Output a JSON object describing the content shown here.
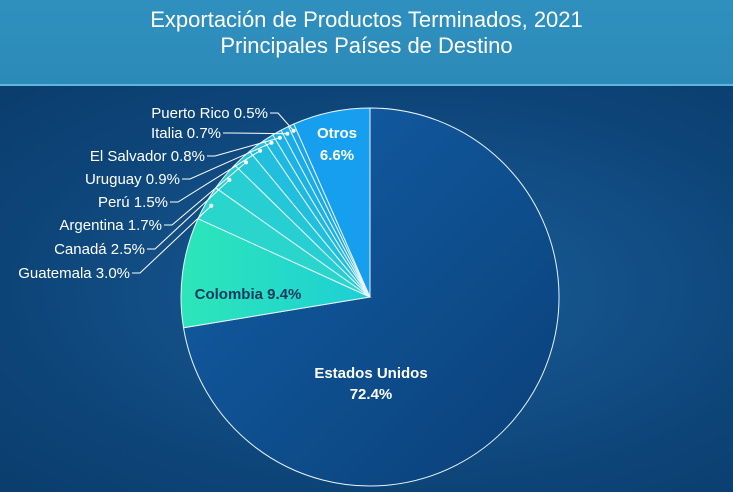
{
  "title_line1": "Exportación de Productos Terminados, 2021",
  "title_line2": "Principales Países de Destino",
  "chart_data": {
    "type": "pie",
    "title": "Exportación de Productos Terminados, 2021 Principales Países de Destino",
    "start": "12 o'clock",
    "direction": "clockwise",
    "slices": [
      {
        "name": "Estados Unidos",
        "value": 72.4,
        "label": "Estados Unidos",
        "pct": "72.4%",
        "color": "#0d4a88"
      },
      {
        "name": "Colombia",
        "value": 9.4,
        "label": "Colombia",
        "pct": "9.4%",
        "color": "#23dcc8"
      },
      {
        "name": "Guatemala",
        "value": 3.0,
        "label": "Guatemala",
        "pct": "3.0%",
        "color": "#2ad6cc"
      },
      {
        "name": "Canadá",
        "value": 2.5,
        "label": "Canadá",
        "pct": "2.5%",
        "color": "#27cfd2"
      },
      {
        "name": "Argentina",
        "value": 1.7,
        "label": "Argentina",
        "pct": "1.7%",
        "color": "#24c7d8"
      },
      {
        "name": "Perú",
        "value": 1.5,
        "label": "Perú",
        "pct": "1.5%",
        "color": "#21bfdd"
      },
      {
        "name": "Uruguay",
        "value": 0.9,
        "label": "Uruguay",
        "pct": "0.9%",
        "color": "#1fb8e1"
      },
      {
        "name": "El Salvador",
        "value": 0.8,
        "label": "El Salvador",
        "pct": "0.8%",
        "color": "#1db2e5"
      },
      {
        "name": "Italia",
        "value": 0.7,
        "label": "Italia",
        "pct": "0.7%",
        "color": "#1aabe9"
      },
      {
        "name": "Puerto Rico",
        "value": 0.5,
        "label": "Puerto Rico",
        "pct": "0.5%",
        "color": "#18a5ec"
      },
      {
        "name": "Otros",
        "value": 6.6,
        "label": "Otros",
        "pct": "6.6%",
        "color": "#159fee"
      }
    ]
  }
}
